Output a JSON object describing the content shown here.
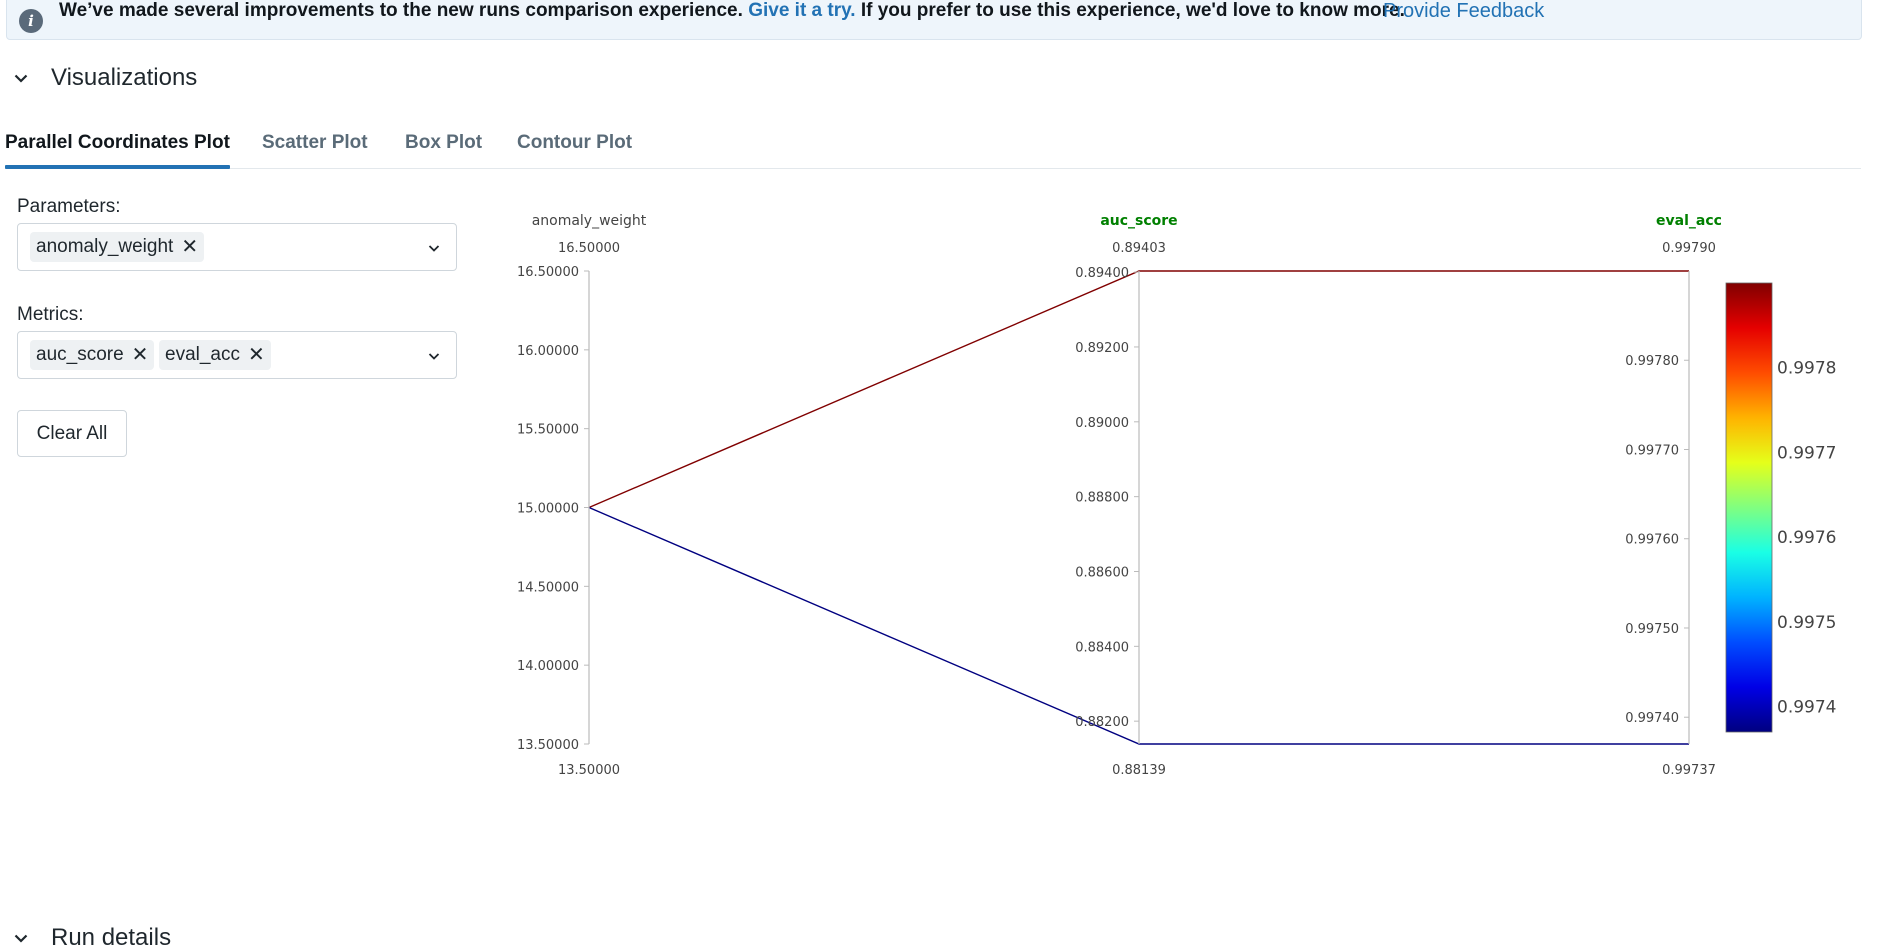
{
  "banner": {
    "icon": "info-icon",
    "text_before": "We’ve made several improvements to the new runs comparison experience.",
    "link": "Give it a try.",
    "text_after": "If you prefer to use this experience, we'd love to know more.",
    "feedback_link": "Provide Feedback"
  },
  "visualizations": {
    "title": "Visualizations",
    "tabs": [
      {
        "label": "Parallel Coordinates Plot",
        "active": true
      },
      {
        "label": "Scatter Plot",
        "active": false
      },
      {
        "label": "Box Plot",
        "active": false
      },
      {
        "label": "Contour Plot",
        "active": false
      }
    ],
    "parameters_label": "Parameters:",
    "parameters": [
      "anomaly_weight"
    ],
    "metrics_label": "Metrics:",
    "metrics": [
      "auc_score",
      "eval_acc"
    ],
    "clear_all": "Clear All"
  },
  "run_details": {
    "title": "Run details"
  },
  "colors": {
    "accent": "#2272b4",
    "metric_label": "#008000",
    "run_high": "#7f0000",
    "run_low": "#00007f"
  },
  "chart_data": {
    "type": "parallel_coordinates",
    "dimensions": [
      {
        "name": "anomaly_weight",
        "kind": "parameter",
        "range": [
          13.5,
          16.5
        ],
        "max_label": "16.50000",
        "min_label": "13.50000",
        "ticks": [
          {
            "value": 16.5,
            "label": "16.50000"
          },
          {
            "value": 16.0,
            "label": "16.00000"
          },
          {
            "value": 15.5,
            "label": "15.50000"
          },
          {
            "value": 15.0,
            "label": "15.00000"
          },
          {
            "value": 14.5,
            "label": "14.50000"
          },
          {
            "value": 14.0,
            "label": "14.00000"
          },
          {
            "value": 13.5,
            "label": "13.50000"
          }
        ]
      },
      {
        "name": "auc_score",
        "kind": "metric",
        "range": [
          0.88139,
          0.89403
        ],
        "max_label": "0.89403",
        "min_label": "0.88139",
        "ticks": [
          {
            "value": 0.894,
            "label": "0.89400"
          },
          {
            "value": 0.892,
            "label": "0.89200"
          },
          {
            "value": 0.89,
            "label": "0.89000"
          },
          {
            "value": 0.888,
            "label": "0.88800"
          },
          {
            "value": 0.886,
            "label": "0.88600"
          },
          {
            "value": 0.884,
            "label": "0.88400"
          },
          {
            "value": 0.882,
            "label": "0.88200"
          }
        ]
      },
      {
        "name": "eval_acc",
        "kind": "metric",
        "range": [
          0.99737,
          0.9979
        ],
        "max_label": "0.99790",
        "min_label": "0.99737",
        "ticks": [
          {
            "value": 0.9978,
            "label": "0.99780"
          },
          {
            "value": 0.9977,
            "label": "0.99770"
          },
          {
            "value": 0.9976,
            "label": "0.99760"
          },
          {
            "value": 0.9975,
            "label": "0.99750"
          },
          {
            "value": 0.9974,
            "label": "0.99740"
          }
        ]
      }
    ],
    "runs": [
      {
        "values": [
          15.0,
          0.89403,
          0.9979
        ],
        "color_value": 0.9979
      },
      {
        "values": [
          15.0,
          0.88139,
          0.99737
        ],
        "color_value": 0.99737
      }
    ],
    "colorbar": {
      "colorscale": "jet",
      "range": [
        0.99737,
        0.9979
      ],
      "ticks": [
        {
          "value": 0.9978,
          "label": "0.9978"
        },
        {
          "value": 0.9977,
          "label": "0.9977"
        },
        {
          "value": 0.9976,
          "label": "0.9976"
        },
        {
          "value": 0.9975,
          "label": "0.9975"
        },
        {
          "value": 0.9974,
          "label": "0.9974"
        }
      ]
    }
  }
}
